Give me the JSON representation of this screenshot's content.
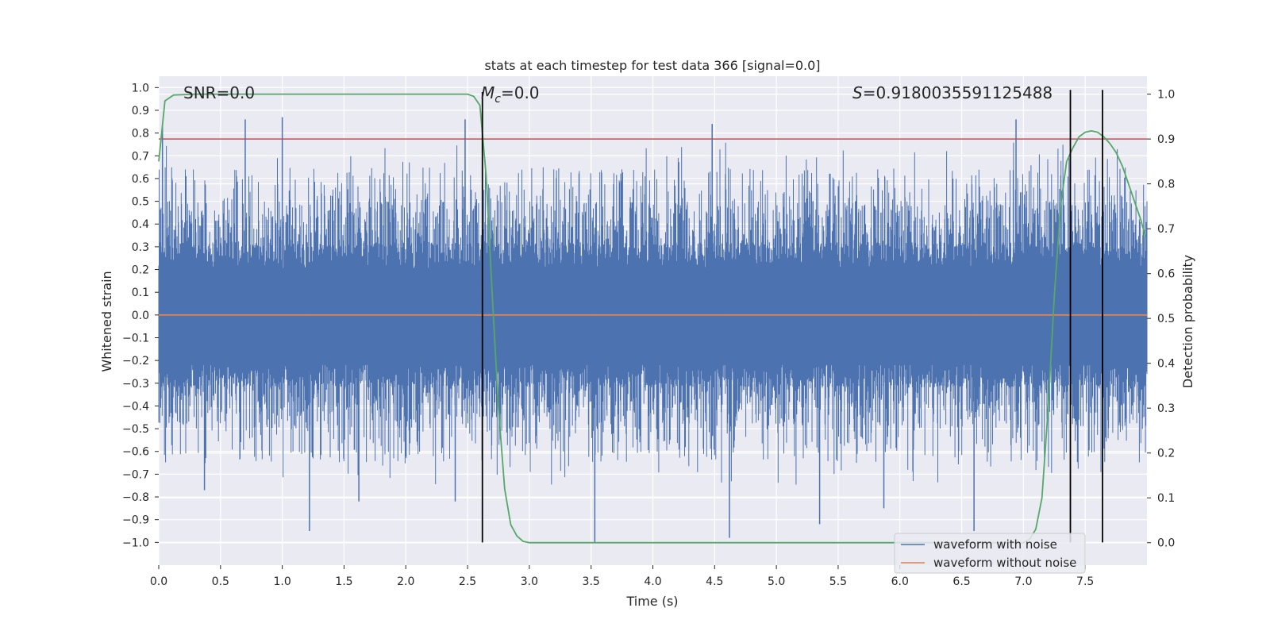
{
  "chart_data": {
    "type": "line",
    "title": "stats at each timestep for test data 366 [signal=0.0]",
    "xlabel": "Time (s)",
    "ylabel_left": "Whitened strain",
    "ylabel_right": "Detection probability",
    "xlim": [
      0.0,
      8.0
    ],
    "ylim_left": [
      -1.1,
      1.05
    ],
    "ylim_right": [
      -0.05,
      1.04
    ],
    "x_ticks": [
      "0.0",
      "0.5",
      "1.0",
      "1.5",
      "2.0",
      "2.5",
      "3.0",
      "3.5",
      "4.0",
      "4.5",
      "5.0",
      "5.5",
      "6.0",
      "6.5",
      "7.0",
      "7.5"
    ],
    "y_ticks_left": [
      "1.0",
      "0.9",
      "0.8",
      "0.7",
      "0.6",
      "0.5",
      "0.4",
      "0.3",
      "0.2",
      "0.1",
      "0.0",
      "−0.1",
      "−0.2",
      "−0.3",
      "−0.4",
      "−0.5",
      "−0.6",
      "−0.7",
      "−0.8",
      "−0.9",
      "−1.0"
    ],
    "y_ticks_right": [
      "1.0",
      "0.9",
      "0.8",
      "0.7",
      "0.6",
      "0.5",
      "0.4",
      "0.3",
      "0.2",
      "0.1",
      "0.0"
    ],
    "annotations": {
      "snr": "SNR=0.0",
      "mc_symbol": "M",
      "mc_sub": "c",
      "mc_value": "=0.0",
      "s_symbol": "S",
      "s_value": "=0.9180035591125488"
    },
    "legend": [
      {
        "label": "waveform with noise",
        "color": "#4c72b0"
      },
      {
        "label": "waveform without noise",
        "color": "#dd8452"
      }
    ],
    "legend_location": "lower-right",
    "threshold_line": {
      "value": 0.9,
      "axis": "right",
      "color": "#c44e52"
    },
    "noise_envelope": {
      "color": "#4c72b0",
      "seed": 366,
      "x_range": [
        0.0,
        8.0
      ],
      "dense_band": [
        -0.22,
        0.2
      ],
      "upper_typical": [
        0.25,
        0.65
      ],
      "lower_typical": [
        -0.25,
        -0.65
      ],
      "extreme_peaks": [
        {
          "x": 0.03,
          "y": 0.83
        },
        {
          "x": 0.7,
          "y": 0.86
        },
        {
          "x": 1.0,
          "y": 0.87
        },
        {
          "x": 2.48,
          "y": 0.86
        },
        {
          "x": 4.48,
          "y": 0.84
        },
        {
          "x": 6.94,
          "y": 0.86
        },
        {
          "x": 1.22,
          "y": -0.95
        },
        {
          "x": 3.53,
          "y": -1.0
        },
        {
          "x": 4.62,
          "y": -0.98
        },
        {
          "x": 5.35,
          "y": -0.92
        },
        {
          "x": 6.6,
          "y": -0.95
        },
        {
          "x": 1.62,
          "y": -0.82
        },
        {
          "x": 2.4,
          "y": -0.82
        },
        {
          "x": 5.87,
          "y": -0.85
        },
        {
          "x": 0.37,
          "y": -0.77
        }
      ]
    },
    "series": [
      {
        "name": "waveform without noise",
        "axis": "left",
        "color": "#dd8452",
        "x": [
          0.0,
          8.0
        ],
        "y": [
          0.0,
          0.0
        ]
      },
      {
        "name": "detection probability",
        "axis": "right",
        "color": "#55a868",
        "x": [
          0.0,
          0.05,
          0.12,
          0.3,
          1.0,
          2.0,
          2.5,
          2.55,
          2.6,
          2.65,
          2.7,
          2.75,
          2.8,
          2.85,
          2.9,
          2.95,
          3.0,
          3.5,
          5.0,
          6.5,
          7.0,
          7.05,
          7.1,
          7.15,
          7.2,
          7.25,
          7.3,
          7.35,
          7.4,
          7.45,
          7.5,
          7.55,
          7.6,
          7.65,
          7.7,
          7.75,
          7.8,
          7.85,
          7.9,
          7.95,
          7.99
        ],
        "y": [
          0.85,
          0.985,
          0.998,
          1.0,
          1.0,
          1.0,
          1.0,
          0.995,
          0.975,
          0.82,
          0.55,
          0.3,
          0.12,
          0.04,
          0.015,
          0.003,
          0.0,
          0.0,
          0.0,
          0.0,
          0.0,
          0.008,
          0.03,
          0.1,
          0.3,
          0.55,
          0.75,
          0.85,
          0.88,
          0.905,
          0.915,
          0.918,
          0.915,
          0.905,
          0.89,
          0.87,
          0.84,
          0.8,
          0.76,
          0.72,
          0.68
        ]
      }
    ],
    "vertical_lines": [
      {
        "x": 2.62,
        "from": -1.0,
        "to": 0.98,
        "color": "#000000"
      },
      {
        "x": 7.38,
        "from": -1.0,
        "to": 0.99,
        "color": "#000000"
      },
      {
        "x": 7.64,
        "from": -1.0,
        "to": 0.99,
        "color": "#000000"
      }
    ]
  }
}
